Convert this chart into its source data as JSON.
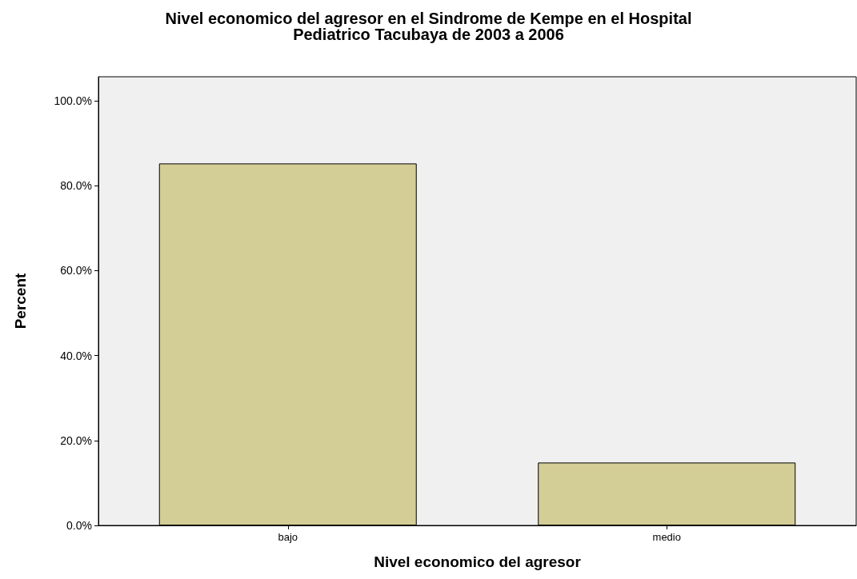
{
  "chart_data": {
    "type": "bar",
    "title": "Nivel economico del agresor en el Sindrome de Kempe en el Hospital\nPediatrico Tacubaya de 2003 a 2006",
    "xlabel": "Nivel economico del agresor",
    "ylabel": "Percent",
    "categories": [
      "bajo",
      "medio"
    ],
    "values": [
      85.2,
      14.8
    ],
    "color": "#d3cd96",
    "ylim": [
      0,
      105.6
    ],
    "yticks": [
      {
        "value": 0,
        "label": "0.0%"
      },
      {
        "value": 20,
        "label": "20.0%"
      },
      {
        "value": 40,
        "label": "40.0%"
      },
      {
        "value": 60,
        "label": "60.0%"
      },
      {
        "value": 80,
        "label": "80.0%"
      },
      {
        "value": 100,
        "label": "100.0%"
      }
    ],
    "grid": false
  }
}
